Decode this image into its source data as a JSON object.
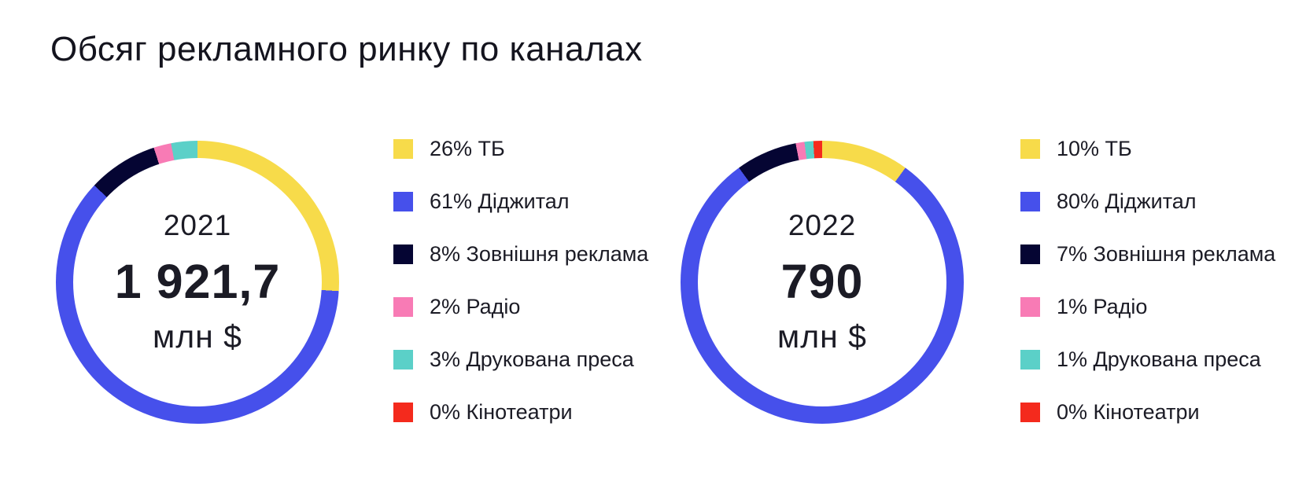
{
  "page": {
    "title": "Обсяг рекламного ринку по каналах",
    "background": "#ffffff",
    "text_color": "#14141E"
  },
  "palette": {
    "tv": "#F7DB4A",
    "digital": "#4650EB",
    "ooh": "#050533",
    "radio": "#F87BB5",
    "press": "#5BD0C8",
    "cinema": "#F42A1D"
  },
  "chart_data": [
    {
      "type": "pie",
      "variant": "donut",
      "title": "2021",
      "center": {
        "year": "2021",
        "value": "1 921,7",
        "unit": "млн $"
      },
      "total": 1921.7,
      "total_unit": "млн $",
      "categories": [
        "ТБ",
        "Діджитал",
        "Зовнішня реклама",
        "Радіо",
        "Друкована преса",
        "Кінотеатри"
      ],
      "values": [
        26,
        61,
        8,
        2,
        3,
        0
      ],
      "colors": [
        "#F7DB4A",
        "#4650EB",
        "#050533",
        "#F87BB5",
        "#5BD0C8",
        "#F42A1D"
      ],
      "start_angle_deg": 0,
      "direction": "clockwise",
      "legend_position": "right",
      "legend": [
        {
          "pct": 26,
          "label": "ТБ",
          "text": "26% ТБ",
          "color": "#F7DB4A"
        },
        {
          "pct": 61,
          "label": "Діджитал",
          "text": "61% Діджитал",
          "color": "#4650EB"
        },
        {
          "pct": 8,
          "label": "Зовнішня реклама",
          "text": "8% Зовнішня реклама",
          "color": "#050533"
        },
        {
          "pct": 2,
          "label": "Радіо",
          "text": "2% Радіо",
          "color": "#F87BB5"
        },
        {
          "pct": 3,
          "label": "Друкована преса",
          "text": "3% Друкована преса",
          "color": "#5BD0C8"
        },
        {
          "pct": 0,
          "label": "Кінотеатри",
          "text": "0% Кінотеатри",
          "color": "#F42A1D"
        }
      ]
    },
    {
      "type": "pie",
      "variant": "donut",
      "title": "2022",
      "center": {
        "year": "2022",
        "value": "790",
        "unit": "млн $"
      },
      "total": 790,
      "total_unit": "млн $",
      "categories": [
        "ТБ",
        "Діджитал",
        "Зовнішня реклама",
        "Радіо",
        "Друкована преса",
        "Кінотеатри"
      ],
      "values": [
        10,
        80,
        7,
        1,
        1,
        0
      ],
      "colors": [
        "#F7DB4A",
        "#4650EB",
        "#050533",
        "#F87BB5",
        "#5BD0C8",
        "#F42A1D"
      ],
      "start_angle_deg": 0,
      "direction": "clockwise",
      "legend_position": "right",
      "legend": [
        {
          "pct": 10,
          "label": "ТБ",
          "text": "10% ТБ",
          "color": "#F7DB4A"
        },
        {
          "pct": 80,
          "label": "Діджитал",
          "text": "80% Діджитал",
          "color": "#4650EB"
        },
        {
          "pct": 7,
          "label": "Зовнішня реклама",
          "text": "7% Зовнішня реклама",
          "color": "#050533"
        },
        {
          "pct": 1,
          "label": "Радіо",
          "text": "1% Радіо",
          "color": "#F87BB5"
        },
        {
          "pct": 1,
          "label": "Друкована преса",
          "text": "1% Друкована преса",
          "color": "#5BD0C8"
        },
        {
          "pct": 0,
          "label": "Кінотеатри",
          "text": "0% Кінотеатри",
          "color": "#F42A1D"
        }
      ]
    }
  ]
}
